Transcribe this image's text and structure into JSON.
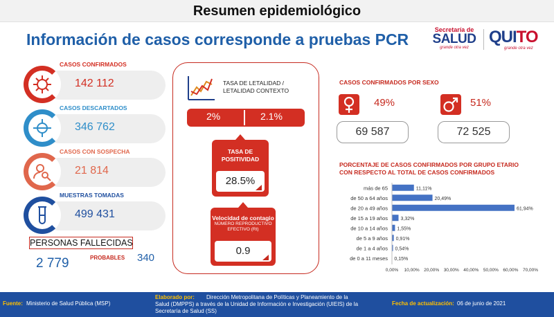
{
  "header": {
    "title": "Resumen epidemiológico"
  },
  "headline": "Información de casos corresponde a pruebas PCR",
  "logos": {
    "msp_line1": "Secretaría de",
    "msp_line2": "SALUD",
    "msp_tagline": "grande otra vez",
    "quito_a": "QUI",
    "quito_b": "TO",
    "quito_tagline": "grande otra vez"
  },
  "kpis": [
    {
      "label": "CASOS CONFIRMADOS",
      "value": "142 112",
      "color": "#d32f23",
      "icon": "virus-icon"
    },
    {
      "label": "CASOS DESCARTADOS",
      "value": "346 762",
      "color": "#2f8ec9",
      "icon": "virus-crossed-icon"
    },
    {
      "label": "CASOS CON SOSPECHA",
      "value": "21 814",
      "color": "#e0674c",
      "icon": "person-search-icon"
    },
    {
      "label": "MUESTRAS TOMADAS",
      "value": "499 431",
      "color": "#1f4f9f",
      "icon": "test-tube-icon"
    }
  ],
  "fallecidos": {
    "label": "PERSONAS FALLECIDAS",
    "total": "2 779",
    "probables_label": "PROBABLES",
    "probables_value": "340"
  },
  "letalidad": {
    "label": "TASA DE LETALIDAD / LETALIDAD CONTEXTO",
    "value_a": "2%",
    "value_b": "2.1%"
  },
  "positividad": {
    "label": "TASA DE POSITIVIDAD",
    "value": "28.5%"
  },
  "contagio": {
    "label": "Velocidad de contagio",
    "sublabel": "NÚMERO REPRODUCTIVO EFECTIVO (Rt)",
    "value": "0.9"
  },
  "sexo": {
    "title": "CASOS CONFIRMADOS POR SEXO",
    "female_pct": "49%",
    "male_pct": "51%",
    "female_count": "69 587",
    "male_count": "72 525"
  },
  "footer": {
    "fuente_key": "Fuente:",
    "fuente_val": "Ministerio de Salud Pública (MSP)",
    "elaborado_key": "Elaborado por:",
    "elaborado_val": "Dirección Metropolitana de Políticas y Planeamiento de la Salud (DMPPS) a través de la Unidad de Información e Investigación (UIEIS) de la Secretaría de Salud (SS)",
    "fecha_key": "Fecha de actualización:",
    "fecha_val": "06 de junio de 2021"
  },
  "colors": {
    "red": "#d32f23",
    "blue": "#1f5fa8",
    "bar": "#4472c4",
    "footer": "#1f4f9f"
  },
  "chart_data": {
    "type": "bar",
    "orientation": "horizontal",
    "title": "PORCENTAJE DE CASOS CONFIRMADOS POR GRUPO ETARIO CON RESPECTO AL TOTAL DE CASOS CONFIRMADOS",
    "title_lines": [
      "PORCENTAJE DE CASOS CONFIRMADOS POR GRUPO ETARIO",
      "CON RESPECTO AL TOTAL DE CASOS CONFIRMADOS"
    ],
    "categories": [
      "más de 65",
      "de 50 a 64 años",
      "de 20 a 49 años",
      "de 15 a 19 años",
      "de 10 a 14 años",
      "de 5 a 9 años",
      "de 1 a 4 años",
      "de 0 a 11 meses"
    ],
    "values": [
      11.11,
      20.49,
      61.94,
      3.32,
      1.55,
      0.91,
      0.54,
      0.15
    ],
    "data_labels": [
      "11,11%",
      "20,49%",
      "61,94%",
      "3,32%",
      "1,55%",
      "0,91%",
      "0,54%",
      "0,15%"
    ],
    "xlim": [
      0,
      70
    ],
    "xticks": [
      "0,00%",
      "10,00%",
      "20,00%",
      "30,00%",
      "40,00%",
      "50,00%",
      "60,00%",
      "70,00%"
    ],
    "xtick_values": [
      0,
      10,
      20,
      30,
      40,
      50,
      60,
      70
    ],
    "xlabel": "",
    "ylabel": "",
    "grid": false,
    "legend": "none"
  }
}
